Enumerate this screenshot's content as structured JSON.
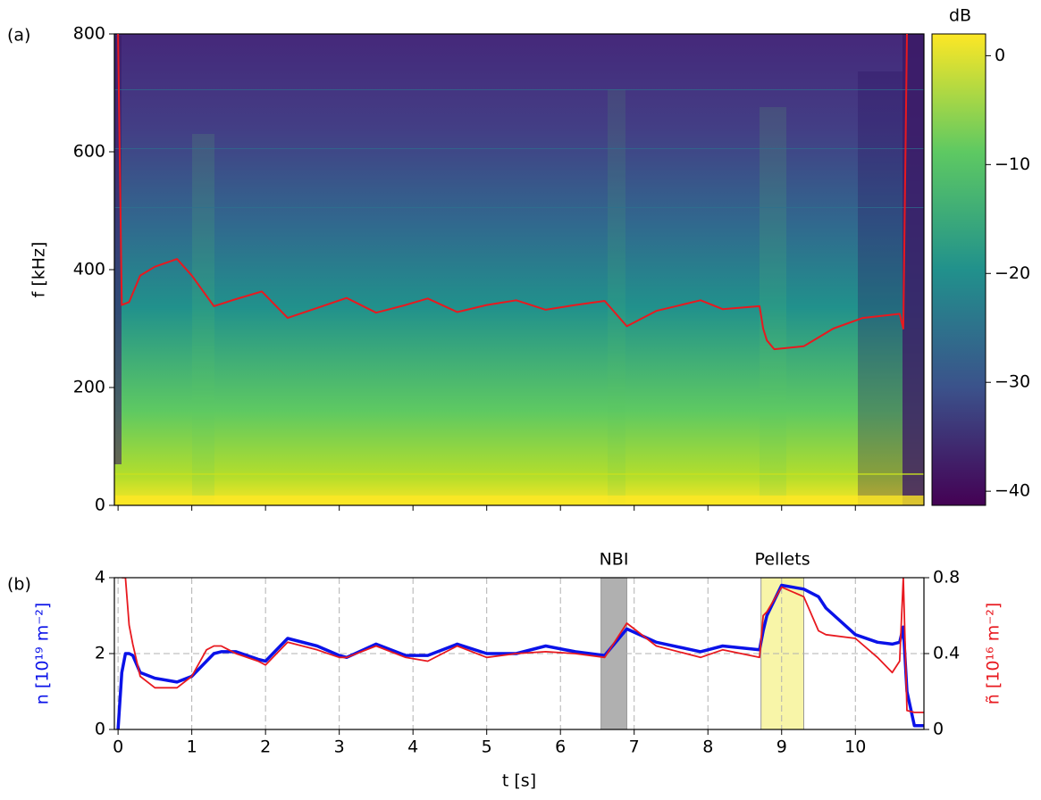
{
  "chart_data": [
    {
      "type": "spectrogram",
      "panel_label": "(a)",
      "ylabel": "f [kHz]",
      "colorbar_label": "dB",
      "xlim": [
        -0.05,
        10.93
      ],
      "ylim": [
        0,
        800
      ],
      "yticks": [
        0,
        200,
        400,
        600,
        800
      ],
      "clim": [
        -41.3,
        2
      ],
      "cticks": [
        {
          "value": 0,
          "label": "0"
        },
        {
          "value": -10,
          "label": "−10"
        },
        {
          "value": -20,
          "label": "−20"
        },
        {
          "value": -30,
          "label": "−30"
        },
        {
          "value": -40,
          "label": "−40"
        }
      ],
      "x": [
        0,
        0.05,
        0.15,
        0.3,
        0.5,
        0.8,
        1.0,
        1.3,
        1.6,
        1.95,
        2.3,
        2.7,
        3.1,
        3.5,
        3.9,
        4.2,
        4.6,
        5.0,
        5.4,
        5.8,
        6.2,
        6.6,
        6.9,
        7.3,
        7.9,
        8.2,
        8.7,
        8.75,
        8.8,
        8.9,
        9.3,
        9.7,
        10.1,
        10.6,
        10.65,
        10.7
      ],
      "series": [
        {
          "color": "#e8191f",
          "values": [
            800,
            340,
            345,
            390,
            405,
            418,
            390,
            338,
            350,
            363,
            318,
            335,
            352,
            327,
            340,
            351,
            328,
            340,
            348,
            332,
            340,
            347,
            304,
            330,
            348,
            333,
            338,
            300,
            280,
            265,
            270,
            300,
            318,
            325,
            300,
            800
          ]
        }
      ]
    },
    {
      "type": "line",
      "panel_label": "(b)",
      "xlabel": "t [s]",
      "ylabel": "n [10¹⁹ m⁻²]",
      "y2label": "ñ [10¹⁶ m⁻²]",
      "xlim": [
        -0.05,
        10.93
      ],
      "xticks": [
        0,
        1,
        2,
        3,
        4,
        5,
        6,
        7,
        8,
        9,
        10
      ],
      "ylim": [
        0,
        4
      ],
      "yticks": [
        0,
        2,
        4
      ],
      "y2lim": [
        0,
        0.8
      ],
      "y2ticks": [
        0,
        0.4,
        0.8
      ],
      "grid": true,
      "spans": [
        {
          "label": "NBI",
          "start": 6.55,
          "end": 6.9,
          "color": "#b0b0b0"
        },
        {
          "label": "Pellets",
          "start": 8.72,
          "end": 9.3,
          "color": "#f8f5a8"
        }
      ],
      "x": [
        0,
        0.05,
        0.1,
        0.15,
        0.2,
        0.3,
        0.5,
        0.8,
        1.0,
        1.2,
        1.3,
        1.4,
        1.6,
        1.9,
        2.0,
        2.3,
        2.7,
        3.0,
        3.1,
        3.5,
        3.9,
        4.2,
        4.6,
        5.0,
        5.4,
        5.8,
        6.2,
        6.6,
        6.9,
        7.3,
        7.9,
        8.2,
        8.7,
        8.75,
        8.8,
        9.0,
        9.3,
        9.5,
        9.6,
        10.0,
        10.3,
        10.5,
        10.6,
        10.65,
        10.7,
        10.8,
        10.95
      ],
      "series": [
        {
          "color": "#0a12e8",
          "values": [
            0,
            1.5,
            2.0,
            2.0,
            1.95,
            1.5,
            1.35,
            1.25,
            1.4,
            1.8,
            2.0,
            2.05,
            2.05,
            1.85,
            1.8,
            2.4,
            2.2,
            1.95,
            1.9,
            2.25,
            1.95,
            1.95,
            2.25,
            2.0,
            2.0,
            2.2,
            2.05,
            1.95,
            2.65,
            2.3,
            2.05,
            2.2,
            2.1,
            2.6,
            3.0,
            3.8,
            3.7,
            3.5,
            3.2,
            2.5,
            2.3,
            2.25,
            2.3,
            2.7,
            1.0,
            0.1,
            0.1
          ]
        },
        {
          "color": "#e8191f",
          "axis": "y2",
          "values": [
            null,
            0.8,
            0.8,
            0.55,
            0.45,
            0.28,
            0.22,
            0.22,
            0.28,
            0.42,
            0.44,
            0.44,
            0.4,
            0.36,
            0.34,
            0.46,
            0.42,
            0.38,
            0.38,
            0.44,
            0.38,
            0.36,
            0.44,
            0.38,
            0.4,
            0.41,
            0.4,
            0.38,
            0.56,
            0.44,
            0.38,
            0.42,
            0.38,
            0.6,
            0.62,
            0.75,
            0.7,
            0.52,
            0.5,
            0.48,
            0.38,
            0.3,
            0.36,
            0.8,
            0.1,
            0.09,
            0.09
          ]
        }
      ]
    }
  ]
}
